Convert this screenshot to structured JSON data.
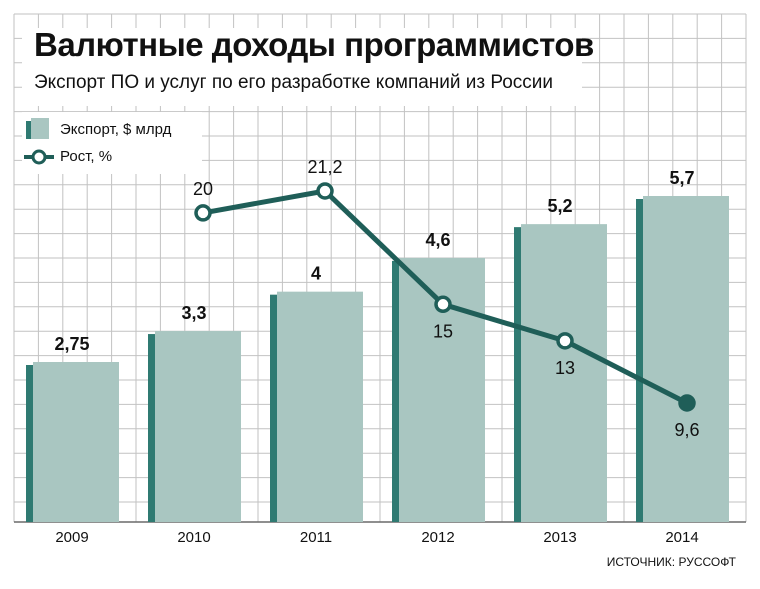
{
  "chart_data": {
    "type": "bar",
    "title": "Валютные доходы программистов",
    "subtitle": "Экспорт ПО и услуг по его разработке компаний из России",
    "categories": [
      "2009",
      "2010",
      "2011",
      "2012",
      "2013",
      "2014"
    ],
    "series": [
      {
        "name": "Экспорт, $ млрд",
        "type": "bar",
        "values": [
          2.75,
          3.3,
          4,
          4.6,
          5.2,
          5.7
        ],
        "labels": [
          "2,75",
          "3,3",
          "4",
          "4,6",
          "5,2",
          "5,7"
        ]
      },
      {
        "name": "Рост, %",
        "type": "line",
        "values": [
          null,
          20,
          21.2,
          15,
          13,
          9.6
        ],
        "labels": [
          "",
          "20",
          "21,2",
          "15",
          "13",
          "9,6"
        ]
      }
    ],
    "grid": true,
    "legend": "top-left",
    "source": "ИСТОЧНИК: РУССОФТ"
  },
  "colors": {
    "bar_face": "#a9c6c1",
    "bar_side": "#2f7a72",
    "line": "#1f5e58",
    "grid": "#c2c2c2"
  }
}
